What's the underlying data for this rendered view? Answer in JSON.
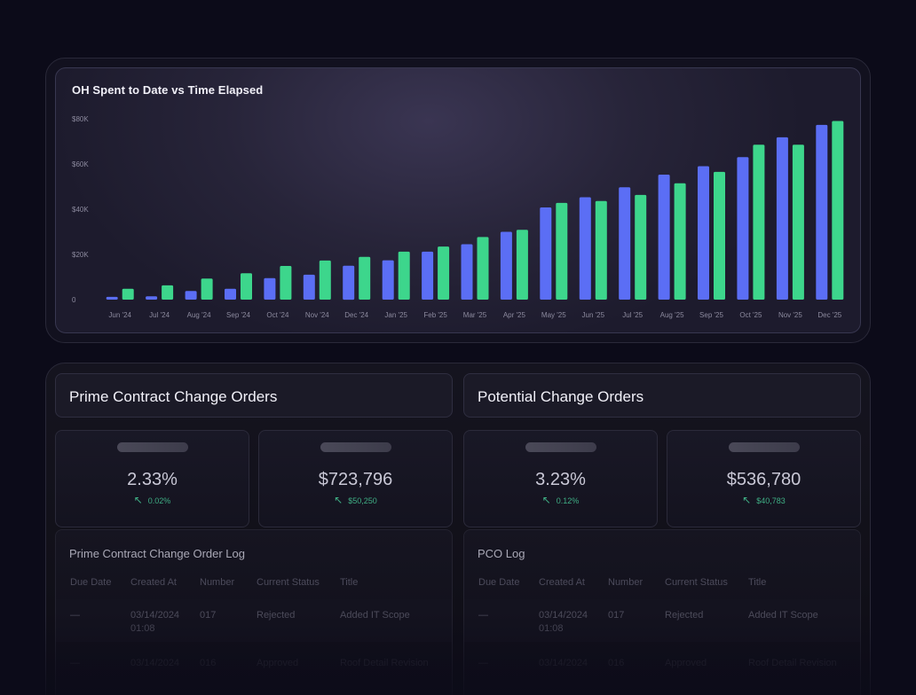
{
  "chart": {
    "title": "OH Spent to Date vs Time Elapsed",
    "colors": {
      "series_a": "#5b6ef5",
      "series_b": "#3dd68c"
    }
  },
  "chart_data": {
    "type": "bar",
    "title": "OH Spent to Date vs Time Elapsed",
    "xlabel": "",
    "ylabel": "",
    "ylim": [
      0,
      80000
    ],
    "yticks": [
      "$80K",
      "$60K",
      "$40K",
      "$20K",
      "0"
    ],
    "ytick_values": [
      80000,
      60000,
      40000,
      20000,
      0
    ],
    "grid": false,
    "legend": "none",
    "categories": [
      "Jun '24",
      "Jul '24",
      "Aug '24",
      "Sep '24",
      "Oct '24",
      "Nov '24",
      "Dec '24",
      "Jan '25",
      "Feb '25",
      "Mar '25",
      "Apr '25",
      "May '25",
      "Jun '25",
      "Jul '25",
      "Aug '25",
      "Sep '25",
      "Oct '25",
      "Nov '25",
      "Dec '25"
    ],
    "series": [
      {
        "values": [
          1200,
          1500,
          3800,
          4800,
          9500,
          11000,
          15000,
          17400,
          21200,
          24500,
          30000,
          40800,
          45300,
          49700,
          55300,
          59000,
          63000,
          71800,
          77300
        ]
      },
      {
        "values": [
          4800,
          6300,
          9300,
          11700,
          14900,
          17300,
          18900,
          21200,
          23500,
          27700,
          30900,
          42800,
          43600,
          46300,
          51500,
          56500,
          68500,
          68500,
          79000
        ]
      }
    ]
  },
  "prime": {
    "header": "Prime Contract Change Orders",
    "stats": [
      {
        "value": "2.33%",
        "delta": "0.02%"
      },
      {
        "value": "$723,796",
        "delta": "$50,250"
      }
    ],
    "log": {
      "title": "Prime Contract Change Order Log",
      "columns": [
        "Due Date",
        "Created At",
        "Number",
        "Current Status",
        "Title"
      ],
      "rows": [
        {
          "due": "—",
          "created": "03/14/2024 01:08",
          "number": "017",
          "status": "Rejected",
          "title": "Added IT Scope"
        },
        {
          "due": "—",
          "created": "03/14/2024",
          "number": "016",
          "status": "Approved",
          "title": "Roof Detail Revision"
        }
      ]
    }
  },
  "pco": {
    "header": "Potential Change Orders",
    "stats": [
      {
        "value": "3.23%",
        "delta": "0.12%"
      },
      {
        "value": "$536,780",
        "delta": "$40,783"
      }
    ],
    "log": {
      "title": "PCO Log",
      "columns": [
        "Due Date",
        "Created At",
        "Number",
        "Current Status",
        "Title"
      ],
      "rows": [
        {
          "due": "—",
          "created": "03/14/2024 01:08",
          "number": "017",
          "status": "Rejected",
          "title": "Added IT Scope"
        },
        {
          "due": "—",
          "created": "03/14/2024",
          "number": "016",
          "status": "Approved",
          "title": "Roof Detail Revision"
        }
      ]
    }
  },
  "icons": {
    "delta": "arrow-up-left-icon"
  }
}
